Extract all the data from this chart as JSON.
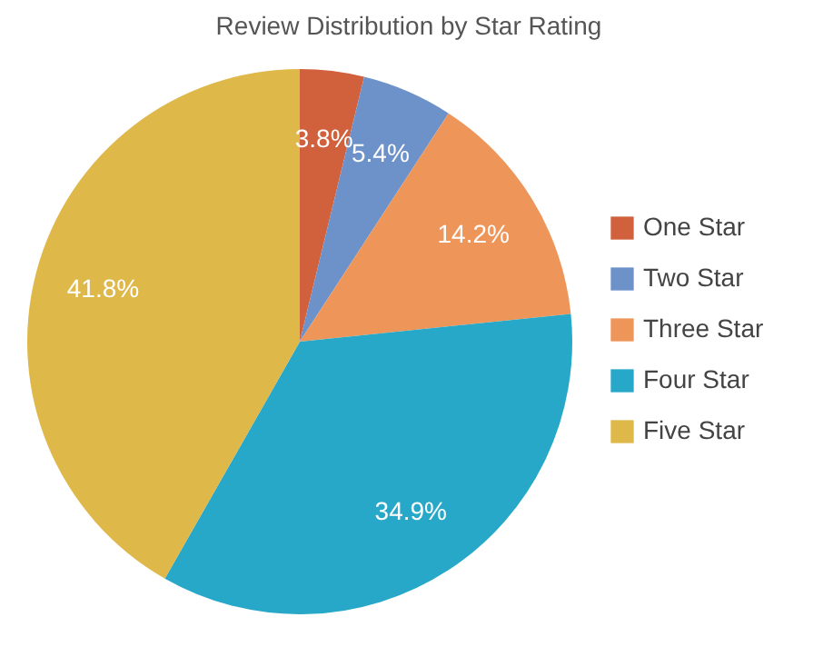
{
  "chart_data": {
    "type": "pie",
    "title": "Review Distribution by Star Rating",
    "categories": [
      "One Star",
      "Two Star",
      "Three Star",
      "Four Star",
      "Five Star"
    ],
    "values": [
      3.8,
      5.4,
      14.2,
      34.9,
      41.8
    ],
    "colors": [
      "#d1603d",
      "#6d92c9",
      "#ee955a",
      "#27a8c8",
      "#dfb84a"
    ],
    "value_labels": [
      "3.8%",
      "5.4%",
      "14.2%",
      "34.9%",
      "41.8%"
    ],
    "legend": "right"
  }
}
